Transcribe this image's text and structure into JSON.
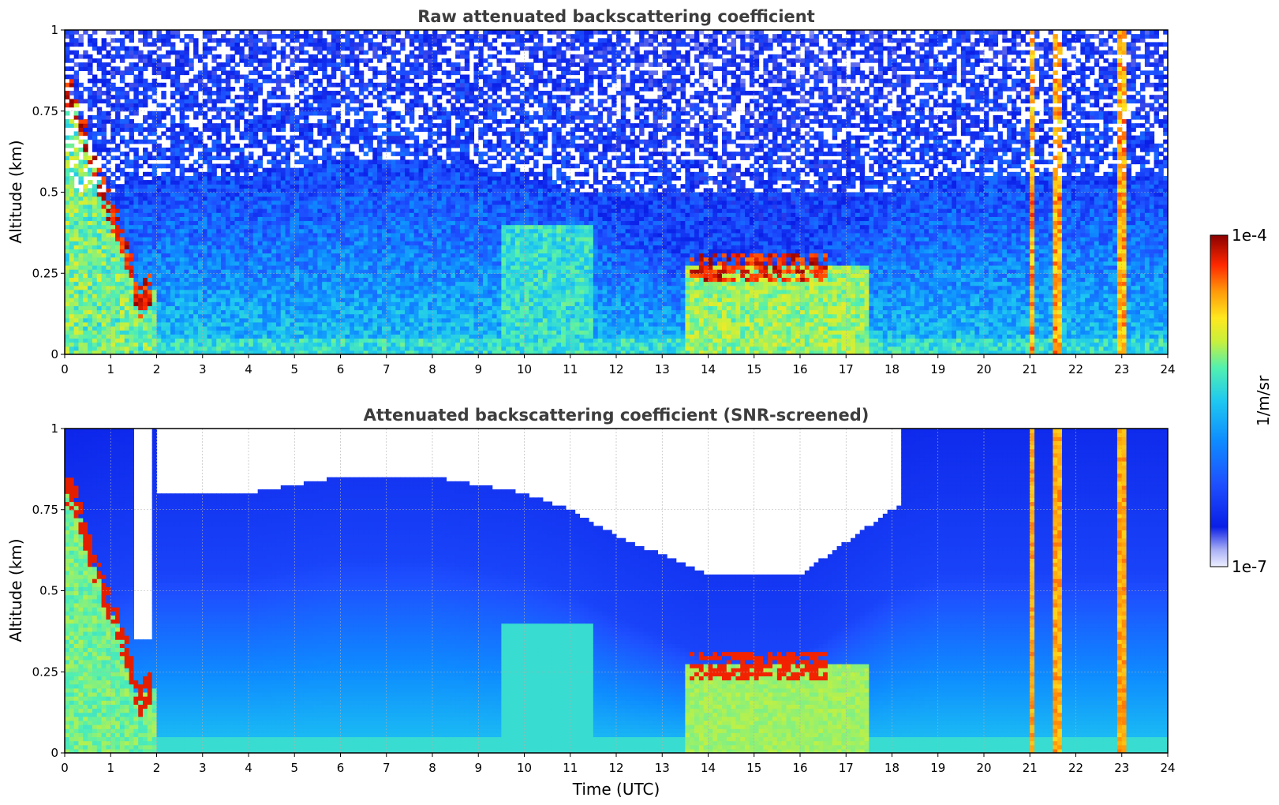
{
  "chart_data": [
    {
      "type": "heatmap",
      "title": "Raw attenuated backscattering coefficient",
      "xlabel": "",
      "ylabel": "Altitude (km)",
      "xlim": [
        0,
        24
      ],
      "ylim": [
        0,
        1
      ],
      "x_ticks": [
        "0",
        "1",
        "2",
        "3",
        "4",
        "5",
        "6",
        "7",
        "8",
        "9",
        "10",
        "11",
        "12",
        "13",
        "14",
        "15",
        "16",
        "17",
        "18",
        "19",
        "20",
        "21",
        "22",
        "23",
        "24"
      ],
      "y_ticks": [
        "0",
        "0.25",
        "0.5",
        "0.75",
        "1"
      ],
      "grid": true,
      "screened": false
    },
    {
      "type": "heatmap",
      "title": "Attenuated backscattering coefficient (SNR-screened)",
      "xlabel": "Time (UTC)",
      "ylabel": "Altitude (km)",
      "xlim": [
        0,
        24
      ],
      "ylim": [
        0,
        1
      ],
      "x_ticks": [
        "0",
        "1",
        "2",
        "3",
        "4",
        "5",
        "6",
        "7",
        "8",
        "9",
        "10",
        "11",
        "12",
        "13",
        "14",
        "15",
        "16",
        "17",
        "18",
        "19",
        "20",
        "21",
        "22",
        "23",
        "24"
      ],
      "y_ticks": [
        "0",
        "0.25",
        "0.5",
        "0.75",
        "1"
      ],
      "grid": true,
      "screened": true
    }
  ],
  "colorbar": {
    "label": "1/m/sr",
    "min_label": "1e-7",
    "max_label": "1e-4",
    "scale": "log",
    "colormap": [
      "#eef0ff",
      "#aab0f5",
      "#0a1ee6",
      "#1e50ff",
      "#0e8cff",
      "#1ec8f0",
      "#52f0b0",
      "#c8f03c",
      "#ffe81e",
      "#ff9a0a",
      "#ff2800",
      "#8a0000"
    ]
  },
  "features": {
    "low_cloud_top_km": [
      [
        0.2,
        0.8
      ],
      [
        0.6,
        0.6
      ],
      [
        1.0,
        0.45
      ],
      [
        1.4,
        0.3
      ],
      [
        1.6,
        0.15
      ],
      [
        1.8,
        0.2
      ]
    ],
    "strong_cloud_layer": {
      "time_range_utc": [
        13.6,
        16.6
      ],
      "altitude_km": 0.27
    },
    "rain_columns_utc": [
      21.05,
      21.6,
      23.0
    ],
    "noise_top_km_start": 0.5
  }
}
